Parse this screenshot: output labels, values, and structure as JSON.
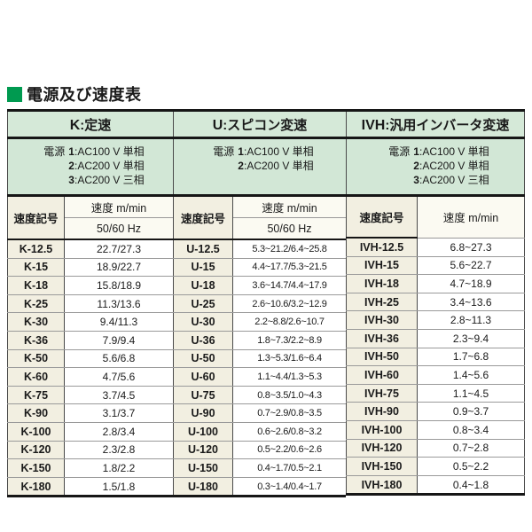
{
  "title": "電源及び速度表",
  "colors": {
    "title_square": "#009a50",
    "section_header_bg": "#d5e9d8",
    "power_row_bg": "#d2e7d6",
    "code_column_bg": "#f2efe1"
  },
  "power_label": "電源",
  "sections": [
    {
      "id": "K",
      "header_prefix": "K",
      "header_separator": ":",
      "header_name": "定速",
      "power": [
        {
          "num": "1",
          "desc": ":AC100 V 単相"
        },
        {
          "num": "2",
          "desc": ":AC200 V 単相"
        },
        {
          "num": "3",
          "desc": ":AC200 V 三相"
        }
      ],
      "col_code": "速度記号",
      "col_speed": "速度 m/min",
      "col_hz": "50/60 Hz",
      "rows": [
        [
          "K-12.5",
          "22.7/27.3"
        ],
        [
          "K-15",
          "18.9/22.7"
        ],
        [
          "K-18",
          "15.8/18.9"
        ],
        [
          "K-25",
          "11.3/13.6"
        ],
        [
          "K-30",
          "9.4/11.3"
        ],
        [
          "K-36",
          "7.9/9.4"
        ],
        [
          "K-50",
          "5.6/6.8"
        ],
        [
          "K-60",
          "4.7/5.6"
        ],
        [
          "K-75",
          "3.7/4.5"
        ],
        [
          "K-90",
          "3.1/3.7"
        ],
        [
          "K-100",
          "2.8/3.4"
        ],
        [
          "K-120",
          "2.3/2.8"
        ],
        [
          "K-150",
          "1.8/2.2"
        ],
        [
          "K-180",
          "1.5/1.8"
        ]
      ]
    },
    {
      "id": "U",
      "header_prefix": "U",
      "header_separator": ":",
      "header_name": "スピコン変速",
      "power": [
        {
          "num": "1",
          "desc": ":AC100 V 単相"
        },
        {
          "num": "2",
          "desc": ":AC200 V 単相"
        }
      ],
      "col_code": "速度記号",
      "col_speed": "速度 m/min",
      "col_hz": "50/60 Hz",
      "rows": [
        [
          "U-12.5",
          "5.3~21.2/6.4~25.8"
        ],
        [
          "U-15",
          "4.4~17.7/5.3~21.5"
        ],
        [
          "U-18",
          "3.6~14.7/4.4~17.9"
        ],
        [
          "U-25",
          "2.6~10.6/3.2~12.9"
        ],
        [
          "U-30",
          "2.2~8.8/2.6~10.7"
        ],
        [
          "U-36",
          "1.8~7.3/2.2~8.9"
        ],
        [
          "U-50",
          "1.3~5.3/1.6~6.4"
        ],
        [
          "U-60",
          "1.1~4.4/1.3~5.3"
        ],
        [
          "U-75",
          "0.8~3.5/1.0~4.3"
        ],
        [
          "U-90",
          "0.7~2.9/0.8~3.5"
        ],
        [
          "U-100",
          "0.6~2.6/0.8~3.2"
        ],
        [
          "U-120",
          "0.5~2.2/0.6~2.6"
        ],
        [
          "U-150",
          "0.4~1.7/0.5~2.1"
        ],
        [
          "U-180",
          "0.3~1.4/0.4~1.7"
        ]
      ]
    },
    {
      "id": "IVH",
      "header_prefix": "IVH",
      "header_separator": ":",
      "header_name": "汎用インバータ変速",
      "power": [
        {
          "num": "1",
          "desc": ":AC100 V 単相"
        },
        {
          "num": "2",
          "desc": ":AC200 V 単相"
        },
        {
          "num": "3",
          "desc": ":AC200 V 三相"
        }
      ],
      "col_code": "速度記号",
      "col_speed": "速度 m/min",
      "col_hz": null,
      "rows": [
        [
          "IVH-12.5",
          "6.8~27.3"
        ],
        [
          "IVH-15",
          "5.6~22.7"
        ],
        [
          "IVH-18",
          "4.7~18.9"
        ],
        [
          "IVH-25",
          "3.4~13.6"
        ],
        [
          "IVH-30",
          "2.8~11.3"
        ],
        [
          "IVH-36",
          "2.3~9.4"
        ],
        [
          "IVH-50",
          "1.7~6.8"
        ],
        [
          "IVH-60",
          "1.4~5.6"
        ],
        [
          "IVH-75",
          "1.1~4.5"
        ],
        [
          "IVH-90",
          "0.9~3.7"
        ],
        [
          "IVH-100",
          "0.8~3.4"
        ],
        [
          "IVH-120",
          "0.7~2.8"
        ],
        [
          "IVH-150",
          "0.5~2.2"
        ],
        [
          "IVH-180",
          "0.4~1.8"
        ]
      ]
    }
  ]
}
